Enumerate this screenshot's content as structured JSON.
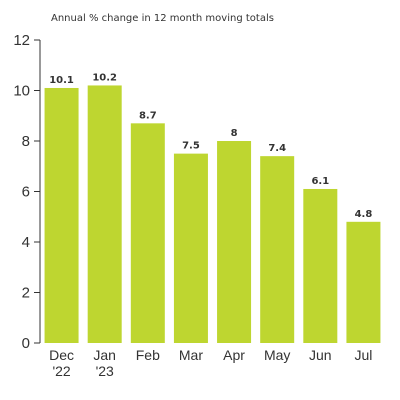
{
  "chart_data": {
    "type": "bar",
    "subtitle": "Annual % change in 12 month moving totals",
    "categories": [
      [
        "Dec",
        "'22"
      ],
      [
        "Jan",
        "'23"
      ],
      [
        "Feb"
      ],
      [
        "Mar"
      ],
      [
        "Apr"
      ],
      [
        "May"
      ],
      [
        "Jun"
      ],
      [
        "Jul"
      ]
    ],
    "values": [
      10.1,
      10.2,
      8.7,
      7.5,
      8,
      7.4,
      6.1,
      4.8
    ],
    "value_labels": [
      "10.1",
      "10.2",
      "8.7",
      "7.5",
      "8",
      "7.4",
      "6.1",
      "4.8"
    ],
    "ylim": [
      0,
      12
    ],
    "yticks": [
      0,
      2,
      4,
      6,
      8,
      10,
      12
    ],
    "grid": false,
    "bar_color": "#bed630",
    "axis_color": "#333333"
  }
}
